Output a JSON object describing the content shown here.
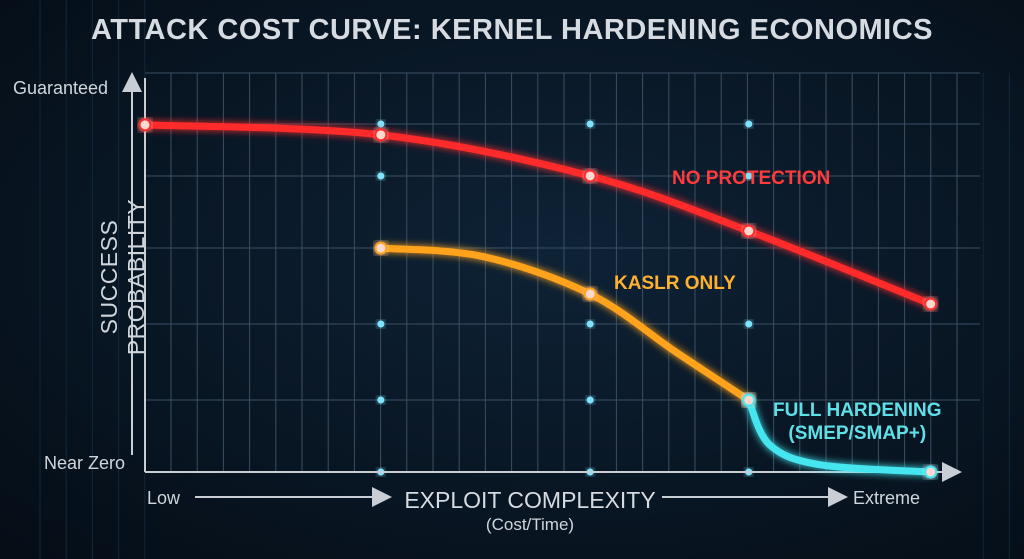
{
  "chart_data": {
    "type": "line",
    "title": "ATTACK COST CURVE: KERNEL HARDENING ECONOMICS",
    "xlabel": "EXPLOIT COMPLEXITY",
    "xlabel_sub": "(Cost/Time)",
    "ylabel": "SUCCESS PROBABILITY",
    "x_tick_labels": {
      "low": "Low",
      "high": "Extreme"
    },
    "y_tick_labels": {
      "low": "Near Zero",
      "high": "Guaranteed"
    },
    "xlim": [
      0,
      100
    ],
    "ylim": [
      0,
      100
    ],
    "grid": true,
    "highlighted_x": [
      29.3,
      55.3,
      75
    ],
    "series": [
      {
        "name": "NO PROTECTION",
        "color": "#ff2a2a",
        "points": [
          [
            0,
            87
          ],
          [
            29.3,
            84.5
          ],
          [
            55.3,
            74.2
          ],
          [
            75,
            60.4
          ],
          [
            97.6,
            42.1
          ]
        ]
      },
      {
        "name": "KASLR ONLY",
        "color": "#ffa21f",
        "points": [
          [
            29.3,
            56.1
          ],
          [
            42,
            54
          ],
          [
            55.3,
            44.6
          ],
          [
            66,
            30
          ],
          [
            75,
            18
          ]
        ]
      },
      {
        "name": "FULL HARDENING\n(SMEP/SMAP+)",
        "name_line1": "FULL HARDENING",
        "name_line2": "(SMEP/SMAP+)",
        "color": "#45e6f0",
        "points": [
          [
            75,
            18
          ],
          [
            77.6,
            6.8
          ],
          [
            83.9,
            1.8
          ],
          [
            97.6,
            0
          ]
        ]
      }
    ]
  }
}
